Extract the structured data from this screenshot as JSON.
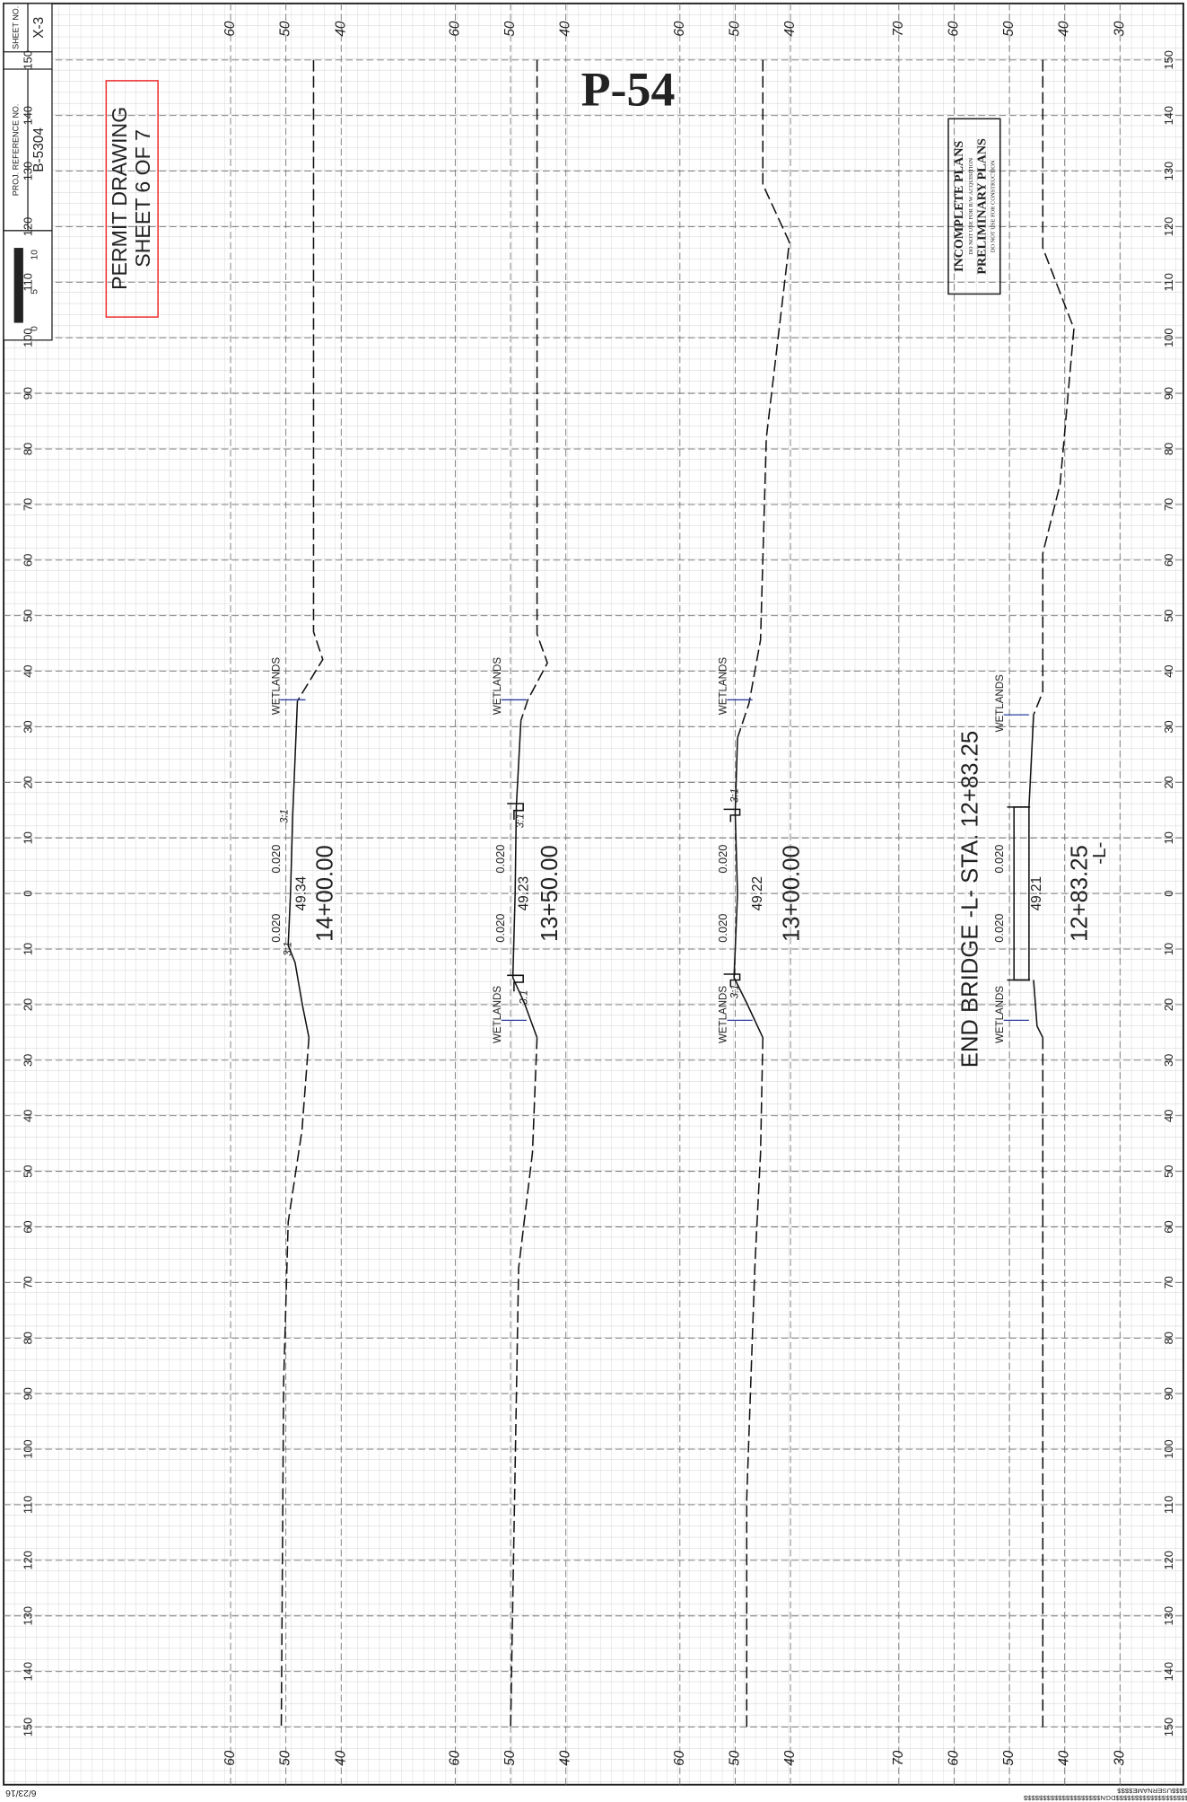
{
  "title_block": {
    "sheet_no_label": "SHEET NO.",
    "sheet_no": "X-3",
    "proj_ref_label": "PROJ. REFERENCE NO.",
    "proj_ref": "B-5304",
    "scale": [
      "0",
      "5",
      "10"
    ]
  },
  "permit": {
    "line1": "PERMIT DRAWING",
    "line2": "SHEET 6 OF 7"
  },
  "drawing_number": "P-54",
  "stamp": {
    "line1": "INCOMPLETE PLANS",
    "line2": "DO NOT USE FOR R/W ACQUISITION",
    "line3": "PRELIMINARY PLANS",
    "line4": "DO NOT USE FOR CONSTRUCTION"
  },
  "offsets": [
    "150",
    "140",
    "130",
    "120",
    "110",
    "100",
    "90",
    "80",
    "70",
    "60",
    "50",
    "40",
    "30",
    "20",
    "10",
    "0",
    "10",
    "20",
    "30",
    "40",
    "50",
    "60",
    "70",
    "80",
    "90",
    "100",
    "110",
    "120",
    "130",
    "140",
    "150"
  ],
  "sections": [
    {
      "station": "14+00.00",
      "elevation": "49.34",
      "slopes": [
        "0.020",
        "0.020"
      ],
      "side_slopes": [
        "3:1",
        "3:1"
      ],
      "wetlands": [
        "WETLANDS"
      ],
      "elev_labels": [
        "60",
        "50",
        "40"
      ]
    },
    {
      "station": "13+50.00",
      "elevation": "49.23",
      "slopes": [
        "0.020",
        "0.020"
      ],
      "side_slopes": [
        "3:1",
        "3:1"
      ],
      "wetlands": [
        "WETLANDS",
        "WETLANDS"
      ],
      "elev_labels": [
        "60",
        "50",
        "40"
      ]
    },
    {
      "station": "13+00.00",
      "elevation": "49.22",
      "slopes": [
        "0.020",
        "0.020"
      ],
      "side_slopes": [
        "3:1",
        "3:1"
      ],
      "wetlands": [
        "WETLANDS",
        "WETLANDS"
      ],
      "elev_labels": [
        "60",
        "50",
        "40"
      ]
    },
    {
      "station": "12+83.25",
      "elevation": "49.21",
      "slopes": [
        "0.020",
        "0.020"
      ],
      "side_slopes": [],
      "wetlands": [
        "WETLANDS",
        "WETLANDS"
      ],
      "elev_labels": [
        "70",
        "60",
        "50",
        "40",
        "30"
      ]
    }
  ],
  "bridge_note": "END BRIDGE -L- STA. 12+83.25",
  "alignment": "-L-",
  "date": "6/23/16",
  "user": "$$$$USERNAME$$$$",
  "file": "$$$$$$$$$$$$$$$$$$$DGN$$$$$$$$$$$$$$$$$$$$"
}
